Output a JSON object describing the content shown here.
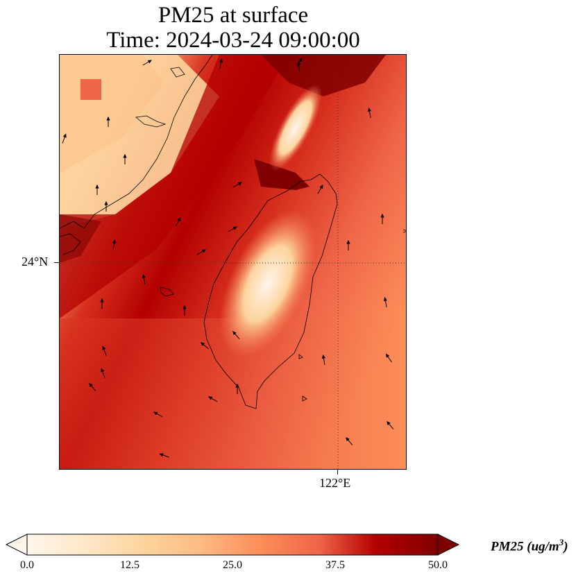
{
  "title": {
    "line1": "PM25 at surface",
    "line2": "Time: 2024-03-24 09:00:00"
  },
  "axes": {
    "lat_label": "24°N",
    "lon_label": "122°E"
  },
  "colorbar": {
    "label_main": "PM25 (ug/m",
    "label_sup": "3",
    "label_end": ")",
    "ticks": [
      "0.0",
      "12.5",
      "25.0",
      "37.5",
      "50.0"
    ],
    "min": 0,
    "max": 50,
    "extend": "both",
    "colormap": [
      "#fff5eb",
      "#fdd49e",
      "#fdbb84",
      "#fc8d59",
      "#ef6548",
      "#d7301f",
      "#b30000",
      "#7f0000"
    ]
  },
  "map": {
    "field": "PM25",
    "gridlines": "dotted",
    "wind_vectors": true
  }
}
